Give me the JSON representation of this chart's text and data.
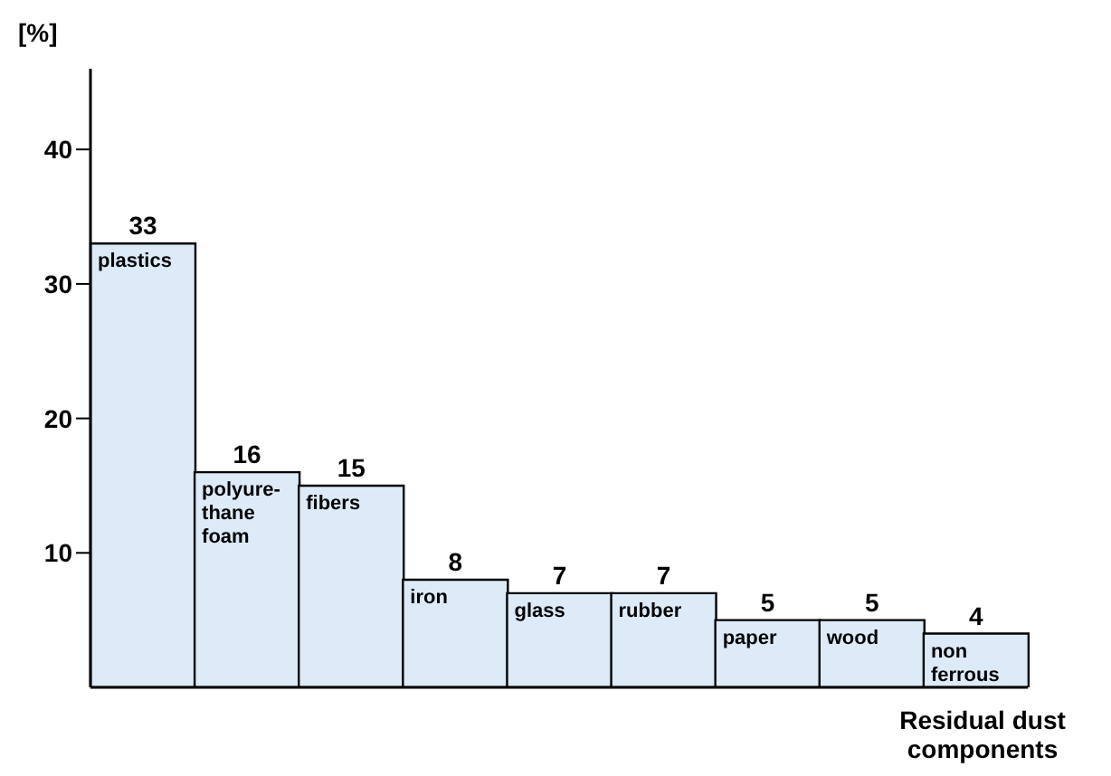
{
  "chart_data": {
    "type": "bar",
    "xlabel": "Residual dust components",
    "ylabel": "[%]",
    "categories": [
      "plastics",
      "polyure-\nthane\nfoam",
      "fibers",
      "iron",
      "glass",
      "rubber",
      "paper",
      "wood",
      "non\nferrous"
    ],
    "values": [
      33,
      16,
      15,
      8,
      7,
      7,
      5,
      5,
      4
    ],
    "color": "#ddeaf8",
    "ylim": [
      0,
      46
    ],
    "yticks": [
      10,
      20,
      30,
      40
    ],
    "grid": false,
    "legend": false,
    "data_labels": true,
    "tick_labels": "y"
  }
}
